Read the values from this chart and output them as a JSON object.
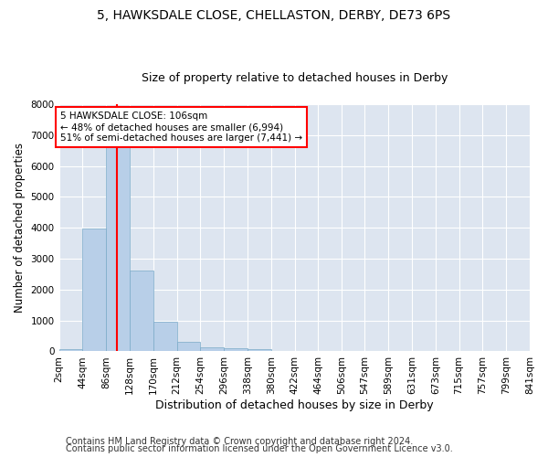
{
  "title_line1": "5, HAWKSDALE CLOSE, CHELLASTON, DERBY, DE73 6PS",
  "title_line2": "Size of property relative to detached houses in Derby",
  "xlabel": "Distribution of detached houses by size in Derby",
  "ylabel": "Number of detached properties",
  "bar_color": "#b8cfe8",
  "bar_edge_color": "#7aaac8",
  "background_color": "#dde5f0",
  "grid_color": "white",
  "bin_edges": [
    2,
    44,
    86,
    128,
    170,
    212,
    254,
    296,
    338,
    380,
    422,
    464,
    506,
    547,
    589,
    631,
    673,
    715,
    757,
    799,
    841
  ],
  "bin_labels": [
    "2sqm",
    "44sqm",
    "86sqm",
    "128sqm",
    "170sqm",
    "212sqm",
    "254sqm",
    "296sqm",
    "338sqm",
    "380sqm",
    "422sqm",
    "464sqm",
    "506sqm",
    "547sqm",
    "589sqm",
    "631sqm",
    "673sqm",
    "715sqm",
    "757sqm",
    "799sqm",
    "841sqm"
  ],
  "bar_heights": [
    75,
    3980,
    6600,
    2620,
    960,
    310,
    130,
    110,
    80,
    0,
    0,
    0,
    0,
    0,
    0,
    0,
    0,
    0,
    0,
    0
  ],
  "ylim": [
    0,
    8000
  ],
  "yticks": [
    0,
    1000,
    2000,
    3000,
    4000,
    5000,
    6000,
    7000,
    8000
  ],
  "vline_x": 106,
  "vline_color": "red",
  "annotation_text": "5 HAWKSDALE CLOSE: 106sqm\n← 48% of detached houses are smaller (6,994)\n51% of semi-detached houses are larger (7,441) →",
  "annotation_box_color": "white",
  "annotation_box_edge": "red",
  "footer_line1": "Contains HM Land Registry data © Crown copyright and database right 2024.",
  "footer_line2": "Contains public sector information licensed under the Open Government Licence v3.0.",
  "title_fontsize": 10,
  "subtitle_fontsize": 9,
  "xlabel_fontsize": 9,
  "ylabel_fontsize": 8.5,
  "tick_fontsize": 7.5,
  "annot_fontsize": 7.5,
  "footer_fontsize": 7
}
